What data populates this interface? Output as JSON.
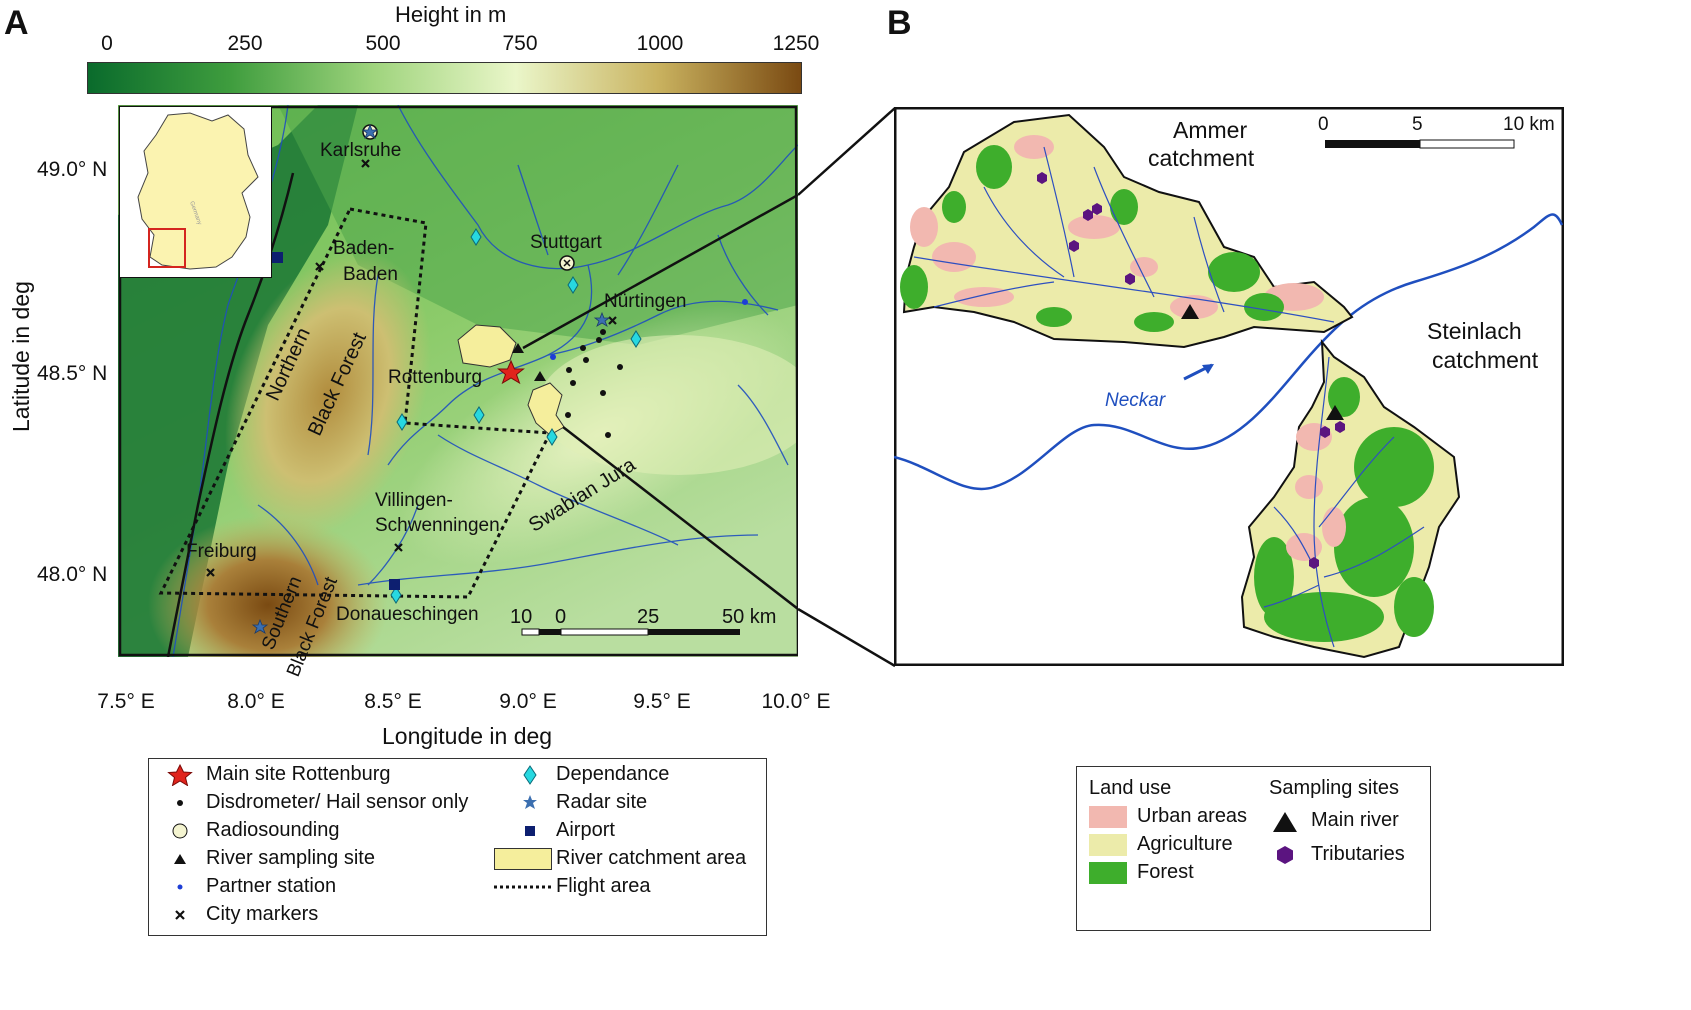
{
  "panel_a": {
    "letter": "A",
    "colorbar": {
      "title": "Height in m",
      "ticks": [
        "0",
        "250",
        "500",
        "750",
        "1000",
        "1250"
      ],
      "colors": [
        "#0a6b2c",
        "#3f9d3e",
        "#9fd47d",
        "#eaf6c9",
        "#c9b25f",
        "#7a4a12"
      ]
    },
    "lat_ticks": [
      "49.0° N",
      "48.5° N",
      "48.0° N"
    ],
    "lon_ticks": [
      "7.5° E",
      "8.0° E",
      "8.5° E",
      "9.0° E",
      "9.5° E",
      "10.0° E"
    ],
    "ylabel": "Latitude in deg",
    "xlabel": "Longitude in deg",
    "places": {
      "karlsruhe": "Karlsruhe",
      "stuttgart": "Stuttgart",
      "baden_1": "Baden-",
      "baden_2": "Baden",
      "nurtingen": "Nürtingen",
      "rottenburg": "Rottenburg",
      "northern_1": "Northern",
      "northern_2": "Black Forest",
      "villingen_1": "Villingen-",
      "villingen_2": "Schwenningen",
      "freiburg": "Freiburg",
      "southern_1": "Southern",
      "southern_2": "Black Forest",
      "donaueschingen": "Donaueschingen",
      "swabian": "Swabian Jura"
    },
    "scale": {
      "labels": [
        "10",
        "0",
        "25",
        "50 km"
      ]
    },
    "inset_country_label": "Germany"
  },
  "panel_b": {
    "letter": "B",
    "ammer_1": "Ammer",
    "ammer_2": "catchment",
    "steinlach_1": "Steinlach",
    "steinlach_2": "catchment",
    "neckar": "Neckar",
    "scale": {
      "labels": [
        "0",
        "5",
        "10 km"
      ]
    }
  },
  "legend_a": {
    "items": [
      "Main site Rottenburg",
      "Disdrometer/ Hail sensor only",
      "Radiosounding",
      "River sampling site",
      "Partner station",
      "City markers",
      "Dependance",
      "Radar site",
      "Airport",
      "River catchment area",
      "Flight area"
    ]
  },
  "legend_b": {
    "land_use_title": "Land use",
    "land_use": [
      "Urban areas",
      "Agriculture",
      "Forest"
    ],
    "sampling_title": "Sampling sites",
    "sampling": [
      "Main river",
      "Tributaries"
    ],
    "colors": {
      "urban": "#f2b8b0",
      "agriculture": "#ecebaa",
      "forest": "#3eae2c",
      "tributary": "#5b1480"
    }
  }
}
